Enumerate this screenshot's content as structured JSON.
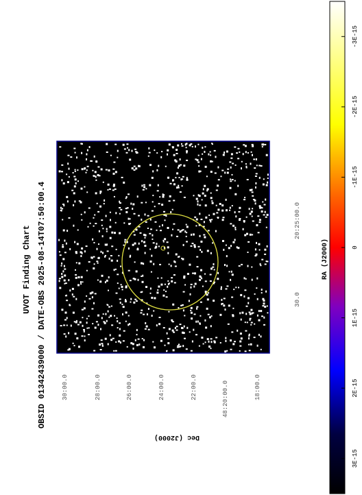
{
  "title": "UVOT Finding Chart",
  "subtitle": "OBSID 01342439000 / DATE-OBS 2025-08-14T07:50:00.4",
  "x_axis": {
    "label": "RA (J2000)",
    "ticks": [
      "30.0",
      "20:25:00.0"
    ]
  },
  "y_axis": {
    "label": "Dec (J2000)",
    "ticks": [
      "30:00.0",
      "28:00.0",
      "26:00.0",
      "24:00.0",
      "22:00.0",
      "48:20:00.0",
      "18:00.0"
    ]
  },
  "colorbar": {
    "lim": [
      -3.5e-15,
      3.5e-15
    ],
    "ticks": [
      {
        "value": -3e-15,
        "label": "-3E-15"
      },
      {
        "value": -2e-15,
        "label": "-2E-15"
      },
      {
        "value": -1e-15,
        "label": "-1E-15"
      },
      0,
      {
        "value": 1e-15,
        "label": "1E-15"
      },
      {
        "value": 2e-15,
        "label": "2E-15"
      },
      {
        "value": 3e-15,
        "label": "3E-15"
      }
    ]
  }
}
